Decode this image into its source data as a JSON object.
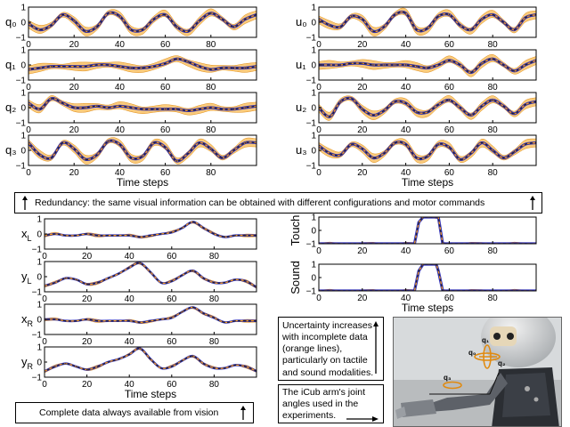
{
  "chart_data": [
    {
      "id": "q0",
      "type": "line",
      "ylabel": "q₀",
      "xlim": [
        0,
        100
      ],
      "ylim": [
        -1,
        1
      ],
      "yticks": [
        -1,
        0,
        1
      ],
      "x_ticks": [
        0,
        20,
        40,
        60,
        80
      ],
      "xlabel": "",
      "x": [
        0,
        5,
        10,
        15,
        20,
        25,
        30,
        35,
        40,
        45,
        50,
        55,
        60,
        65,
        70,
        75,
        80,
        85,
        90,
        95,
        100
      ],
      "series": [
        {
          "values": [
            -0.1,
            -0.5,
            -0.2,
            0.5,
            0.1,
            -0.6,
            -0.3,
            0.6,
            0.4,
            -0.5,
            -0.5,
            0.2,
            0.5,
            -0.3,
            -0.6,
            0.1,
            0.6,
            0.2,
            -0.3,
            0.2,
            0.5
          ]
        }
      ]
    },
    {
      "id": "q1",
      "type": "line",
      "ylabel": "q₁",
      "xlim": [
        0,
        100
      ],
      "ylim": [
        -1,
        1
      ],
      "yticks": [
        -1,
        0,
        1
      ],
      "x_ticks": [
        0,
        20,
        40,
        60,
        80
      ],
      "xlabel": "",
      "x": [
        0,
        5,
        10,
        15,
        20,
        25,
        30,
        35,
        40,
        45,
        50,
        55,
        60,
        65,
        70,
        75,
        80,
        85,
        90,
        95,
        100
      ],
      "series": [
        {
          "values": [
            -0.3,
            -0.2,
            -0.1,
            -0.1,
            -0.1,
            -0.1,
            0.0,
            0.0,
            -0.1,
            -0.2,
            -0.2,
            -0.1,
            0.1,
            0.4,
            0.2,
            -0.1,
            -0.3,
            -0.2,
            -0.2,
            -0.2,
            -0.1
          ]
        }
      ]
    },
    {
      "id": "q2",
      "type": "line",
      "ylabel": "q₂",
      "xlim": [
        0,
        100
      ],
      "ylim": [
        -1,
        1
      ],
      "yticks": [
        -1,
        0,
        1
      ],
      "x_ticks": [
        0,
        20,
        40,
        60,
        80
      ],
      "xlabel": "",
      "x": [
        0,
        5,
        10,
        15,
        20,
        25,
        30,
        35,
        40,
        45,
        50,
        55,
        60,
        65,
        70,
        75,
        80,
        85,
        90,
        95,
        100
      ],
      "series": [
        {
          "values": [
            0.3,
            -0.1,
            0.6,
            0.3,
            0.0,
            0.0,
            0.1,
            0.0,
            0.1,
            0.0,
            -0.1,
            -0.1,
            -0.1,
            -0.1,
            -0.2,
            -0.1,
            0.0,
            -0.1,
            -0.1,
            0.0,
            0.1
          ]
        }
      ]
    },
    {
      "id": "q3",
      "type": "line",
      "ylabel": "q₃",
      "xlim": [
        0,
        100
      ],
      "ylim": [
        -1,
        1
      ],
      "yticks": [
        -1,
        0,
        1
      ],
      "x_ticks": [
        0,
        20,
        40,
        60,
        80
      ],
      "xlabel": "Time steps",
      "x": [
        0,
        5,
        10,
        15,
        20,
        25,
        30,
        35,
        40,
        45,
        50,
        55,
        60,
        65,
        70,
        75,
        80,
        85,
        90,
        95,
        100
      ],
      "series": [
        {
          "values": [
            0.5,
            -0.3,
            -0.5,
            0.5,
            0.1,
            -0.6,
            -0.3,
            0.6,
            0.4,
            -0.5,
            -0.4,
            0.5,
            0.2,
            -0.7,
            -0.2,
            0.5,
            0.1,
            -0.5,
            0.0,
            0.5,
            0.5
          ]
        }
      ]
    },
    {
      "id": "u0",
      "type": "line",
      "ylabel": "u₀",
      "xlim": [
        0,
        100
      ],
      "ylim": [
        -1,
        1
      ],
      "yticks": [
        -1,
        0,
        1
      ],
      "x_ticks": [
        0,
        20,
        40,
        60,
        80
      ],
      "xlabel": "",
      "x": [
        0,
        5,
        10,
        15,
        20,
        25,
        30,
        35,
        40,
        45,
        50,
        55,
        60,
        65,
        70,
        75,
        80,
        85,
        90,
        95,
        100
      ],
      "series": [
        {
          "values": [
            0.2,
            -0.2,
            -0.3,
            0.4,
            0.2,
            -0.6,
            -0.3,
            0.5,
            0.6,
            -0.5,
            -0.4,
            0.4,
            0.5,
            -0.2,
            -0.5,
            0.2,
            0.5,
            0.0,
            -0.5,
            0.3,
            0.5
          ]
        }
      ]
    },
    {
      "id": "u1",
      "type": "line",
      "ylabel": "u₁",
      "xlim": [
        0,
        100
      ],
      "ylim": [
        -1,
        1
      ],
      "yticks": [
        -1,
        0,
        1
      ],
      "x_ticks": [
        0,
        20,
        40,
        60,
        80
      ],
      "xlabel": "",
      "x": [
        0,
        5,
        10,
        15,
        20,
        25,
        30,
        35,
        40,
        45,
        50,
        55,
        60,
        65,
        70,
        75,
        80,
        85,
        90,
        95,
        100
      ],
      "series": [
        {
          "values": [
            0.0,
            0.0,
            0.0,
            0.1,
            0.1,
            0.0,
            0.0,
            0.0,
            0.0,
            -0.1,
            -0.2,
            0.0,
            0.3,
            0.0,
            -0.5,
            0.1,
            0.4,
            0.0,
            -0.4,
            0.0,
            0.3
          ]
        }
      ]
    },
    {
      "id": "u2",
      "type": "line",
      "ylabel": "u₂",
      "xlim": [
        0,
        100
      ],
      "ylim": [
        -1,
        1
      ],
      "yticks": [
        -1,
        0,
        1
      ],
      "x_ticks": [
        0,
        20,
        40,
        60,
        80
      ],
      "xlabel": "",
      "x": [
        0,
        5,
        10,
        15,
        20,
        25,
        30,
        35,
        40,
        45,
        50,
        55,
        60,
        65,
        70,
        75,
        80,
        85,
        90,
        95,
        100
      ],
      "series": [
        {
          "values": [
            0.0,
            -0.6,
            0.4,
            0.6,
            -0.1,
            -0.5,
            -0.2,
            0.4,
            0.3,
            -0.3,
            -0.3,
            0.2,
            0.5,
            0.0,
            -0.5,
            0.1,
            0.5,
            0.1,
            -0.4,
            0.2,
            0.4
          ]
        }
      ]
    },
    {
      "id": "u3",
      "type": "line",
      "ylabel": "u₃",
      "xlim": [
        0,
        100
      ],
      "ylim": [
        -1,
        1
      ],
      "yticks": [
        -1,
        0,
        1
      ],
      "x_ticks": [
        0,
        20,
        40,
        60,
        80
      ],
      "xlabel": "Time steps",
      "x": [
        0,
        5,
        10,
        15,
        20,
        25,
        30,
        35,
        40,
        45,
        50,
        55,
        60,
        65,
        70,
        75,
        80,
        85,
        90,
        95,
        100
      ],
      "series": [
        {
          "values": [
            0.3,
            -0.2,
            -0.3,
            0.4,
            0.1,
            -0.5,
            -0.2,
            0.5,
            0.4,
            -0.5,
            -0.4,
            0.4,
            0.2,
            -0.6,
            -0.2,
            0.5,
            0.0,
            -0.5,
            -0.1,
            0.4,
            0.5
          ]
        }
      ]
    },
    {
      "id": "xL",
      "type": "line",
      "ylabel": "x_L",
      "xlim": [
        0,
        100
      ],
      "ylim": [
        -1,
        1
      ],
      "yticks": [
        -1,
        0,
        1
      ],
      "x_ticks": [
        0,
        20,
        40,
        60,
        80
      ],
      "xlabel": "",
      "x": [
        0,
        5,
        10,
        15,
        20,
        25,
        30,
        35,
        40,
        45,
        50,
        55,
        60,
        65,
        70,
        75,
        80,
        85,
        90,
        95,
        100
      ],
      "series": [
        {
          "values": [
            -0.1,
            0.0,
            -0.1,
            -0.1,
            0.0,
            -0.1,
            -0.1,
            -0.1,
            -0.1,
            -0.2,
            -0.1,
            0.0,
            0.1,
            0.4,
            0.8,
            0.4,
            0.0,
            -0.2,
            -0.1,
            -0.1,
            -0.1
          ]
        }
      ]
    },
    {
      "id": "yL",
      "type": "line",
      "ylabel": "y_L",
      "xlim": [
        0,
        100
      ],
      "ylim": [
        -1,
        1
      ],
      "yticks": [
        -1,
        0,
        1
      ],
      "x_ticks": [
        0,
        20,
        40,
        60,
        80
      ],
      "xlabel": "",
      "x": [
        0,
        5,
        10,
        15,
        20,
        25,
        30,
        35,
        40,
        45,
        50,
        55,
        60,
        65,
        70,
        75,
        80,
        85,
        90,
        95,
        100
      ],
      "series": [
        {
          "values": [
            -0.6,
            -0.4,
            -0.1,
            -0.2,
            -0.5,
            -0.4,
            -0.1,
            0.2,
            0.6,
            0.9,
            0.3,
            -0.4,
            -0.3,
            0.1,
            0.4,
            -0.1,
            -0.4,
            -0.4,
            -0.2,
            -0.3,
            -0.7
          ]
        }
      ]
    },
    {
      "id": "xR",
      "type": "line",
      "ylabel": "x_R",
      "xlim": [
        0,
        100
      ],
      "ylim": [
        -1,
        1
      ],
      "yticks": [
        -1,
        0,
        1
      ],
      "x_ticks": [
        0,
        20,
        40,
        60,
        80
      ],
      "xlabel": "",
      "x": [
        0,
        5,
        10,
        15,
        20,
        25,
        30,
        35,
        40,
        45,
        50,
        55,
        60,
        65,
        70,
        75,
        80,
        85,
        90,
        95,
        100
      ],
      "series": [
        {
          "values": [
            0.0,
            0.0,
            -0.1,
            -0.1,
            0.0,
            -0.1,
            -0.1,
            -0.1,
            -0.1,
            -0.2,
            -0.1,
            0.0,
            0.1,
            0.5,
            0.8,
            0.4,
            0.1,
            -0.2,
            -0.1,
            -0.1,
            -0.1
          ]
        }
      ]
    },
    {
      "id": "yR",
      "type": "line",
      "ylabel": "y_R",
      "xlim": [
        0,
        100
      ],
      "ylim": [
        -1,
        1
      ],
      "yticks": [
        -1,
        0,
        1
      ],
      "x_ticks": [
        0,
        20,
        40,
        60,
        80
      ],
      "xlabel": "Time steps",
      "x": [
        0,
        5,
        10,
        15,
        20,
        25,
        30,
        35,
        40,
        45,
        50,
        55,
        60,
        65,
        70,
        75,
        80,
        85,
        90,
        95,
        100
      ],
      "series": [
        {
          "values": [
            -0.6,
            -0.3,
            -0.1,
            -0.3,
            -0.5,
            -0.3,
            0.0,
            0.2,
            0.5,
            0.9,
            0.2,
            -0.4,
            -0.3,
            0.1,
            0.4,
            -0.1,
            -0.4,
            -0.4,
            -0.2,
            -0.3,
            -0.6
          ]
        }
      ]
    },
    {
      "id": "touch",
      "type": "line",
      "ylabel": "Touch",
      "xlim": [
        0,
        100
      ],
      "ylim": [
        -1,
        1
      ],
      "yticks": [
        -1,
        0,
        1
      ],
      "x_ticks": [
        0,
        20,
        40,
        60,
        80
      ],
      "xlabel": "",
      "x": [
        0,
        5,
        10,
        15,
        20,
        25,
        30,
        35,
        40,
        44,
        46,
        48,
        50,
        52,
        54,
        55,
        57,
        60,
        65,
        70,
        75,
        80,
        85,
        90,
        95,
        100
      ],
      "series": [
        {
          "values": [
            -1,
            -1,
            -1,
            -1,
            -1,
            -1,
            -1,
            -1,
            -1,
            -1,
            0.6,
            1,
            1,
            1,
            1,
            1,
            -1,
            -1,
            -1,
            -1,
            -1,
            -1,
            -1,
            -1,
            -1,
            -1
          ]
        }
      ]
    },
    {
      "id": "sound",
      "type": "line",
      "ylabel": "Sound",
      "xlim": [
        0,
        100
      ],
      "ylim": [
        -1,
        1
      ],
      "yticks": [
        -1,
        0,
        1
      ],
      "x_ticks": [
        0,
        20,
        40,
        60,
        80
      ],
      "xlabel": "Time steps",
      "x": [
        0,
        5,
        10,
        15,
        20,
        25,
        30,
        35,
        40,
        44,
        46,
        48,
        50,
        52,
        54,
        55,
        57,
        60,
        65,
        70,
        75,
        80,
        85,
        90,
        95,
        100
      ],
      "series": [
        {
          "values": [
            -1,
            -1,
            -1,
            -1,
            -1,
            -1,
            -1,
            -1,
            -1,
            -1,
            0.5,
            1,
            1,
            1,
            1,
            0.5,
            -1,
            -1,
            -1,
            -1,
            -1,
            -1,
            -1,
            -1,
            -1,
            -1
          ]
        }
      ]
    }
  ],
  "colors": {
    "mean": "#1f1fb4",
    "truth": "#222222",
    "band": "#f7b850",
    "band_edge": "#e08a10",
    "dash": "#f59a20"
  },
  "annotations": {
    "redundancy": "Redundancy: the same visual information can be obtained with different configurations and motor commands",
    "vision": "Complete data always available from vision",
    "uncertainty": "Uncertainty increases with incomplete data (orange lines), particularly on tactile and sound modalities.",
    "joint": "The iCub arm's joint angles used in the experiments."
  },
  "photo_labels": {
    "q0": "q₀",
    "q1": "q₁",
    "q2": "q₂",
    "q3": "q₃"
  }
}
